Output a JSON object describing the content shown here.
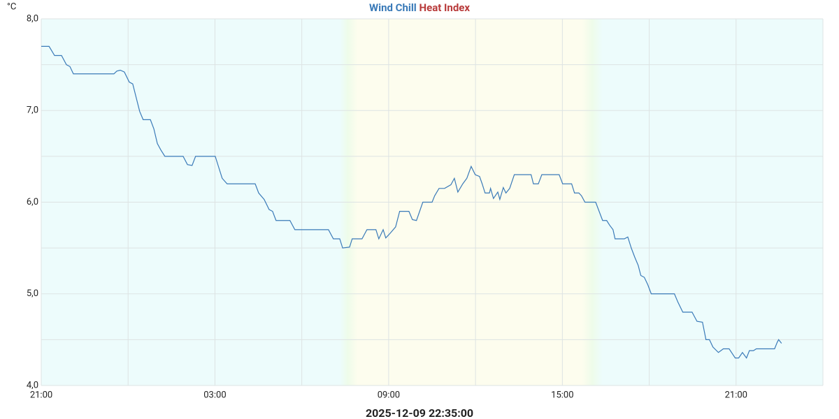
{
  "chart_data": {
    "type": "line",
    "y_unit": "°C",
    "footer": "2025-12-09 22:35:00",
    "series": [
      {
        "name": "Wind Chill",
        "color": "#3a7ab8",
        "values": [
          7.7,
          7.7,
          7.6,
          7.6,
          7.5,
          7.48,
          7.4,
          7.4,
          7.43,
          7.44,
          7.42,
          7.31,
          7.29,
          7.14,
          6.99,
          6.9,
          6.9,
          6.8,
          6.64,
          6.57,
          6.5,
          6.5,
          6.41,
          6.4,
          6.5,
          6.5,
          6.4,
          6.26,
          6.2,
          6.2,
          6.1,
          6.03,
          5.92,
          5.9,
          5.8,
          5.8,
          5.7,
          5.7,
          5.6,
          5.6,
          5.5,
          5.51,
          5.6,
          5.6,
          5.7,
          5.7,
          5.6,
          5.7,
          5.61,
          5.66,
          5.73,
          5.9,
          5.9,
          5.81,
          5.8,
          6.0,
          6.0,
          6.07,
          6.15,
          6.15,
          6.19,
          6.26,
          6.11,
          6.2,
          6.26,
          6.39,
          6.3,
          6.28,
          6.2,
          6.1,
          6.1,
          6.15,
          6.04,
          6.11,
          6.03,
          6.16,
          6.1,
          6.15,
          6.3,
          6.3,
          6.2,
          6.2,
          6.3,
          6.3,
          6.2,
          6.2,
          6.1,
          6.1,
          6.07,
          6.0,
          6.0,
          5.8,
          5.8,
          5.75,
          5.7,
          5.6,
          5.6,
          5.62,
          5.5,
          5.4,
          5.31,
          5.2,
          5.18,
          5.1,
          5.0,
          5.0,
          4.91,
          4.8,
          4.8,
          4.7,
          4.69,
          4.5,
          4.5,
          4.42,
          4.36,
          4.4,
          4.4,
          4.3,
          4.3,
          4.36,
          4.3,
          4.38,
          4.38,
          4.4,
          4.4,
          4.47,
          4.5,
          4.46
        ]
      }
    ],
    "inactive_series": [
      {
        "name": "Heat Index",
        "color": "#b83a3a"
      }
    ],
    "x": [
      0.0,
      0.27,
      0.46,
      0.7,
      0.87,
      0.99,
      1.11,
      2.51,
      2.61,
      2.73,
      2.87,
      3.04,
      3.16,
      3.28,
      3.4,
      3.52,
      3.77,
      3.89,
      4.01,
      4.13,
      4.27,
      4.9,
      5.05,
      5.21,
      5.33,
      6.01,
      6.11,
      6.25,
      6.42,
      7.39,
      7.51,
      7.7,
      7.87,
      7.99,
      8.11,
      8.59,
      8.76,
      9.92,
      10.09,
      10.31,
      10.41,
      10.65,
      10.74,
      11.08,
      11.25,
      11.56,
      11.66,
      11.81,
      11.9,
      12.05,
      12.24,
      12.38,
      12.7,
      12.82,
      12.96,
      13.18,
      13.5,
      13.59,
      13.74,
      13.93,
      14.15,
      14.27,
      14.39,
      14.56,
      14.7,
      14.85,
      14.99,
      15.14,
      15.23,
      15.33,
      15.48,
      15.52,
      15.62,
      15.77,
      15.84,
      15.96,
      16.05,
      16.18,
      16.34,
      16.92,
      17.0,
      17.17,
      17.29,
      17.89,
      18.01,
      18.32,
      18.42,
      18.57,
      18.66,
      18.78,
      19.15,
      19.39,
      19.53,
      19.63,
      19.75,
      19.82,
      20.14,
      20.26,
      20.38,
      20.5,
      20.62,
      20.71,
      20.83,
      20.95,
      21.07,
      21.87,
      21.99,
      22.16,
      22.48,
      22.65,
      22.84,
      22.96,
      23.08,
      23.2,
      23.39,
      23.56,
      23.76,
      23.97,
      24.09,
      24.22,
      24.36,
      24.46,
      24.6,
      24.7,
      25.33,
      25.42,
      25.47,
      25.57
    ],
    "xlim": [
      0,
      27
    ],
    "xticks": [
      {
        "value": 0,
        "label": "21:00"
      },
      {
        "value": 6,
        "label": "03:00"
      },
      {
        "value": 12,
        "label": "09:00"
      },
      {
        "value": 18,
        "label": "15:00"
      },
      {
        "value": 24,
        "label": "21:00"
      }
    ],
    "xgrid": [
      0,
      3,
      6,
      9,
      12,
      15,
      18,
      21,
      24,
      27
    ],
    "ylim": [
      4,
      8
    ],
    "yticks": [
      {
        "value": 4,
        "label": "4,0"
      },
      {
        "value": 5,
        "label": "5,0"
      },
      {
        "value": 6,
        "label": "6,0"
      },
      {
        "value": 7,
        "label": "7,0"
      },
      {
        "value": 8,
        "label": "8,0"
      }
    ],
    "ygrid": [
      4,
      4.5,
      5,
      5.5,
      6,
      6.5,
      7,
      7.5,
      8
    ],
    "grid": true
  }
}
